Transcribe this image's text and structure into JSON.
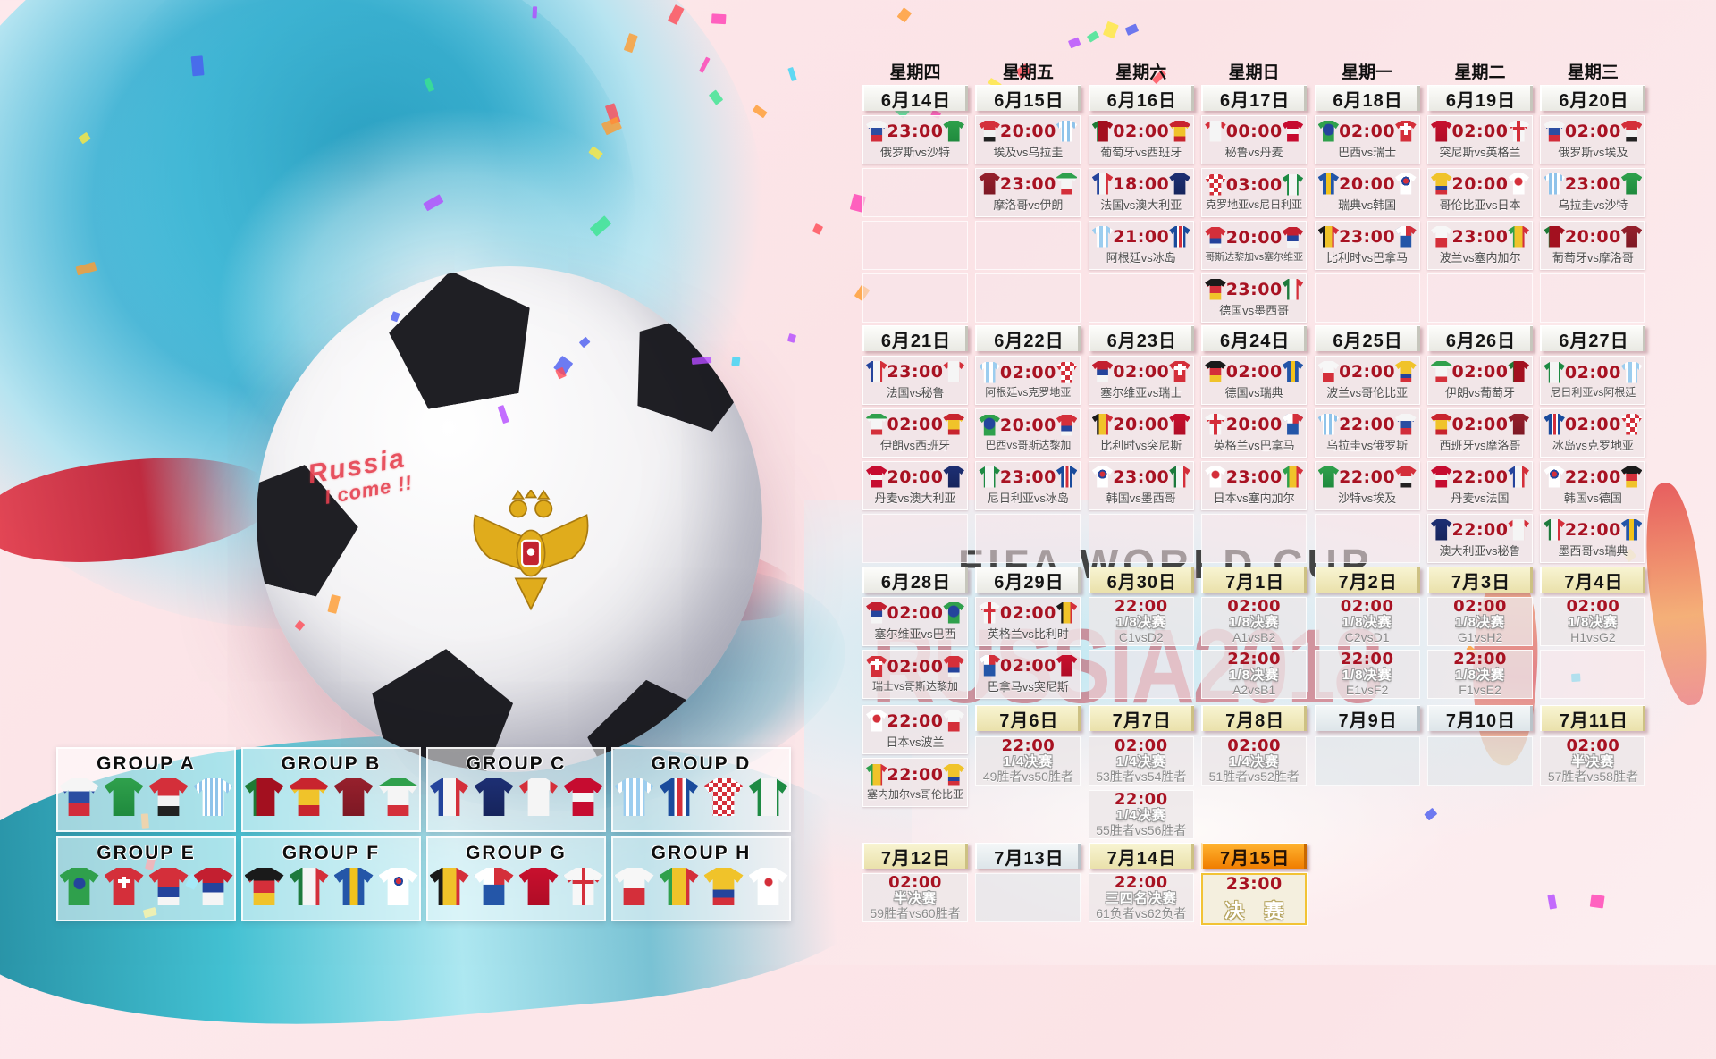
{
  "watermarks": {
    "title": "FIFA WORLD CUP",
    "subtitle": "RUSSIA2018"
  },
  "art": {
    "graffiti_line1": "Russia",
    "graffiti_line2": "I come !!"
  },
  "colors": {
    "time_red": "#a81222",
    "date_gold_bg": "#f3ecc0",
    "date_hot_bg": "#f07d00",
    "final_border": "#f2c335",
    "watermark_red": "#c21a2a",
    "splash_cyan": "#2fb0d4"
  },
  "calendar": {
    "vs_joiner": "vs",
    "weekdays": [
      "星期四",
      "星期五",
      "星期六",
      "星期日",
      "星期一",
      "星期二",
      "星期三"
    ],
    "rows": [
      [
        {
          "t": "w",
          "label": "星期四"
        },
        {
          "t": "w",
          "label": "星期五"
        },
        {
          "t": "w",
          "label": "星期六"
        },
        {
          "t": "w",
          "label": "星期日"
        },
        {
          "t": "w",
          "label": "星期一"
        },
        {
          "t": "w",
          "label": "星期二"
        },
        {
          "t": "w",
          "label": "星期三"
        }
      ],
      [
        {
          "t": "d",
          "label": "6月14日",
          "v": "plain"
        },
        {
          "t": "d",
          "label": "6月15日",
          "v": "plain"
        },
        {
          "t": "d",
          "label": "6月16日",
          "v": "plain"
        },
        {
          "t": "d",
          "label": "6月17日",
          "v": "plain"
        },
        {
          "t": "d",
          "label": "6月18日",
          "v": "plain"
        },
        {
          "t": "d",
          "label": "6月19日",
          "v": "plain"
        },
        {
          "t": "d",
          "label": "6月20日",
          "v": "plain"
        }
      ],
      [
        {
          "t": "m",
          "time": "23:00",
          "h": "俄罗斯",
          "a": "沙特"
        },
        {
          "t": "m",
          "time": "20:00",
          "h": "埃及",
          "a": "乌拉圭"
        },
        {
          "t": "m",
          "time": "02:00",
          "h": "葡萄牙",
          "a": "西班牙"
        },
        {
          "t": "m",
          "time": "00:00",
          "h": "秘鲁",
          "a": "丹麦"
        },
        {
          "t": "m",
          "time": "02:00",
          "h": "巴西",
          "a": "瑞士"
        },
        {
          "t": "m",
          "time": "02:00",
          "h": "突尼斯",
          "a": "英格兰"
        },
        {
          "t": "m",
          "time": "02:00",
          "h": "俄罗斯",
          "a": "埃及"
        }
      ],
      [
        {
          "t": "e"
        },
        {
          "t": "m",
          "time": "23:00",
          "h": "摩洛哥",
          "a": "伊朗"
        },
        {
          "t": "m",
          "time": "18:00",
          "h": "法国",
          "a": "澳大利亚"
        },
        {
          "t": "m",
          "time": "03:00",
          "h": "克罗地亚",
          "a": "尼日利亚"
        },
        {
          "t": "m",
          "time": "20:00",
          "h": "瑞典",
          "a": "韩国"
        },
        {
          "t": "m",
          "time": "20:00",
          "h": "哥伦比亚",
          "a": "日本"
        },
        {
          "t": "m",
          "time": "23:00",
          "h": "乌拉圭",
          "a": "沙特"
        }
      ],
      [
        {
          "t": "e"
        },
        {
          "t": "e"
        },
        {
          "t": "m",
          "time": "21:00",
          "h": "阿根廷",
          "a": "冰岛"
        },
        {
          "t": "m",
          "time": "20:00",
          "h": "哥斯达黎加",
          "a": "塞尔维亚"
        },
        {
          "t": "m",
          "time": "23:00",
          "h": "比利时",
          "a": "巴拿马"
        },
        {
          "t": "m",
          "time": "23:00",
          "h": "波兰",
          "a": "塞内加尔"
        },
        {
          "t": "m",
          "time": "20:00",
          "h": "葡萄牙",
          "a": "摩洛哥"
        }
      ],
      [
        {
          "t": "e"
        },
        {
          "t": "e"
        },
        {
          "t": "e"
        },
        {
          "t": "m",
          "time": "23:00",
          "h": "德国",
          "a": "墨西哥"
        },
        {
          "t": "e"
        },
        {
          "t": "e"
        },
        {
          "t": "e"
        }
      ],
      [
        {
          "t": "d",
          "label": "6月21日",
          "v": "plain"
        },
        {
          "t": "d",
          "label": "6月22日",
          "v": "plain"
        },
        {
          "t": "d",
          "label": "6月23日",
          "v": "plain"
        },
        {
          "t": "d",
          "label": "6月24日",
          "v": "plain"
        },
        {
          "t": "d",
          "label": "6月25日",
          "v": "plain"
        },
        {
          "t": "d",
          "label": "6月26日",
          "v": "plain"
        },
        {
          "t": "d",
          "label": "6月27日",
          "v": "plain"
        }
      ],
      [
        {
          "t": "m",
          "time": "23:00",
          "h": "法国",
          "a": "秘鲁"
        },
        {
          "t": "m",
          "time": "02:00",
          "h": "阿根廷",
          "a": "克罗地亚"
        },
        {
          "t": "m",
          "time": "02:00",
          "h": "塞尔维亚",
          "a": "瑞士"
        },
        {
          "t": "m",
          "time": "02:00",
          "h": "德国",
          "a": "瑞典"
        },
        {
          "t": "m",
          "time": "02:00",
          "h": "波兰",
          "a": "哥伦比亚"
        },
        {
          "t": "m",
          "time": "02:00",
          "h": "伊朗",
          "a": "葡萄牙"
        },
        {
          "t": "m",
          "time": "02:00",
          "h": "尼日利亚",
          "a": "阿根廷"
        }
      ],
      [
        {
          "t": "m",
          "time": "02:00",
          "h": "伊朗",
          "a": "西班牙"
        },
        {
          "t": "m",
          "time": "20:00",
          "h": "巴西",
          "a": "哥斯达黎加"
        },
        {
          "t": "m",
          "time": "20:00",
          "h": "比利时",
          "a": "突尼斯"
        },
        {
          "t": "m",
          "time": "20:00",
          "h": "英格兰",
          "a": "巴拿马"
        },
        {
          "t": "m",
          "time": "22:00",
          "h": "乌拉圭",
          "a": "俄罗斯"
        },
        {
          "t": "m",
          "time": "02:00",
          "h": "西班牙",
          "a": "摩洛哥"
        },
        {
          "t": "m",
          "time": "02:00",
          "h": "冰岛",
          "a": "克罗地亚"
        }
      ],
      [
        {
          "t": "m",
          "time": "20:00",
          "h": "丹麦",
          "a": "澳大利亚"
        },
        {
          "t": "m",
          "time": "23:00",
          "h": "尼日利亚",
          "a": "冰岛"
        },
        {
          "t": "m",
          "time": "23:00",
          "h": "韩国",
          "a": "墨西哥"
        },
        {
          "t": "m",
          "time": "23:00",
          "h": "日本",
          "a": "塞内加尔"
        },
        {
          "t": "m",
          "time": "22:00",
          "h": "沙特",
          "a": "埃及"
        },
        {
          "t": "m",
          "time": "22:00",
          "h": "丹麦",
          "a": "法国"
        },
        {
          "t": "m",
          "time": "22:00",
          "h": "韩国",
          "a": "德国"
        }
      ],
      [
        {
          "t": "e"
        },
        {
          "t": "e"
        },
        {
          "t": "e"
        },
        {
          "t": "e"
        },
        {
          "t": "e"
        },
        {
          "t": "m",
          "time": "22:00",
          "h": "澳大利亚",
          "a": "秘鲁"
        },
        {
          "t": "m",
          "time": "22:00",
          "h": "墨西哥",
          "a": "瑞典"
        }
      ],
      [
        {
          "t": "d",
          "label": "6月28日",
          "v": "plain"
        },
        {
          "t": "d",
          "label": "6月29日",
          "v": "plain"
        },
        {
          "t": "d",
          "label": "6月30日",
          "v": "gold"
        },
        {
          "t": "d",
          "label": "7月1日",
          "v": "gold"
        },
        {
          "t": "d",
          "label": "7月2日",
          "v": "gold"
        },
        {
          "t": "d",
          "label": "7月3日",
          "v": "gold"
        },
        {
          "t": "d",
          "label": "7月4日",
          "v": "gold"
        }
      ],
      [
        {
          "t": "m",
          "time": "02:00",
          "h": "塞尔维亚",
          "a": "巴西"
        },
        {
          "t": "m",
          "time": "02:00",
          "h": "英格兰",
          "a": "比利时"
        },
        {
          "t": "k",
          "time": "22:00",
          "stage": "1/8决赛",
          "mu": "C1vsD2"
        },
        {
          "t": "k",
          "time": "02:00",
          "stage": "1/8决赛",
          "mu": "A1vsB2"
        },
        {
          "t": "k",
          "time": "02:00",
          "stage": "1/8决赛",
          "mu": "C2vsD1"
        },
        {
          "t": "k",
          "time": "02:00",
          "stage": "1/8决赛",
          "mu": "G1vsH2"
        },
        {
          "t": "k",
          "time": "02:00",
          "stage": "1/8决赛",
          "mu": "H1vsG2"
        }
      ],
      [
        {
          "t": "m",
          "time": "02:00",
          "h": "瑞士",
          "a": "哥斯达黎加"
        },
        {
          "t": "m",
          "time": "02:00",
          "h": "巴拿马",
          "a": "突尼斯"
        },
        {
          "t": "e"
        },
        {
          "t": "k",
          "time": "22:00",
          "stage": "1/8决赛",
          "mu": "A2vsB1"
        },
        {
          "t": "k",
          "time": "22:00",
          "stage": "1/8决赛",
          "mu": "E1vsF2"
        },
        {
          "t": "k",
          "time": "22:00",
          "stage": "1/8决赛",
          "mu": "F1vsE2"
        },
        {
          "t": "e"
        }
      ],
      [
        {
          "t": "m",
          "time": "22:00",
          "h": "日本",
          "a": "波兰"
        },
        {
          "t": "d",
          "label": "7月6日",
          "v": "gold"
        },
        {
          "t": "d",
          "label": "7月7日",
          "v": "gold"
        },
        {
          "t": "d",
          "label": "7月8日",
          "v": "gold"
        },
        {
          "t": "d",
          "label": "7月9日",
          "v": "cool"
        },
        {
          "t": "d",
          "label": "7月10日",
          "v": "cool"
        },
        {
          "t": "d",
          "label": "7月11日",
          "v": "gold"
        }
      ],
      [
        {
          "t": "m",
          "time": "22:00",
          "h": "塞内加尔",
          "a": "哥伦比亚"
        },
        {
          "t": "k",
          "time": "22:00",
          "stage": "1/4决赛",
          "mu": "49胜者vs50胜者"
        },
        {
          "t": "k",
          "time": "02:00",
          "stage": "1/4决赛",
          "mu": "53胜者vs54胜者"
        },
        {
          "t": "k",
          "time": "02:00",
          "stage": "1/4决赛",
          "mu": "51胜者vs52胜者"
        },
        {
          "t": "e",
          "v": "cool"
        },
        {
          "t": "e",
          "v": "cool"
        },
        {
          "t": "k",
          "time": "02:00",
          "stage": "半决赛",
          "mu": "57胜者vs58胜者"
        }
      ],
      [
        {
          "t": "n"
        },
        {
          "t": "n"
        },
        {
          "t": "k",
          "time": "22:00",
          "stage": "1/4决赛",
          "mu": "55胜者vs56胜者"
        },
        {
          "t": "n"
        },
        {
          "t": "n"
        },
        {
          "t": "n"
        },
        {
          "t": "n"
        }
      ],
      [
        {
          "t": "d",
          "label": "7月12日",
          "v": "gold"
        },
        {
          "t": "d",
          "label": "7月13日",
          "v": "cool"
        },
        {
          "t": "d",
          "label": "7月14日",
          "v": "gold"
        },
        {
          "t": "d",
          "label": "7月15日",
          "v": "hot"
        },
        {
          "t": "n"
        },
        {
          "t": "n"
        },
        {
          "t": "n"
        }
      ],
      [
        {
          "t": "k",
          "time": "02:00",
          "stage": "半决赛",
          "mu": "59胜者vs60胜者"
        },
        {
          "t": "e",
          "v": "cool"
        },
        {
          "t": "k",
          "time": "22:00",
          "stage": "三四名决赛",
          "mu": "61负者vs62负者"
        },
        {
          "t": "f",
          "time": "23:00",
          "label": "决 赛"
        },
        {
          "t": "n"
        },
        {
          "t": "n"
        },
        {
          "t": "n"
        }
      ]
    ]
  },
  "groups": [
    {
      "name": "GROUP A",
      "teams": [
        "俄罗斯",
        "沙特",
        "埃及",
        "乌拉圭"
      ]
    },
    {
      "name": "GROUP B",
      "teams": [
        "葡萄牙",
        "西班牙",
        "摩洛哥",
        "伊朗"
      ]
    },
    {
      "name": "GROUP C",
      "teams": [
        "法国",
        "澳大利亚",
        "秘鲁",
        "丹麦"
      ]
    },
    {
      "name": "GROUP D",
      "teams": [
        "阿根廷",
        "冰岛",
        "克罗地亚",
        "尼日利亚"
      ]
    },
    {
      "name": "GROUP E",
      "teams": [
        "巴西",
        "瑞士",
        "哥斯达黎加",
        "塞尔维亚"
      ]
    },
    {
      "name": "GROUP F",
      "teams": [
        "德国",
        "墨西哥",
        "瑞典",
        "韩国"
      ]
    },
    {
      "name": "GROUP G",
      "teams": [
        "比利时",
        "巴拿马",
        "突尼斯",
        "英格兰"
      ]
    },
    {
      "name": "GROUP H",
      "teams": [
        "波兰",
        "塞内加尔",
        "哥伦比亚",
        "日本"
      ]
    }
  ],
  "teams": {
    "俄罗斯": "linear-gradient(180deg,#f5f5f5 0 34%,#2b4ea2 34% 67%,#d22c3a 67%)",
    "沙特": "linear-gradient(180deg,#2fa04c,#1f8a3d)",
    "埃及": "linear-gradient(180deg,#d42f3a 0 46%,#f2f2f2 46% 74%,#222222 74%)",
    "乌拉圭": "repeating-linear-gradient(90deg,#8fc3ea 0 3px,#ffffff 3px 6px)",
    "葡萄牙": "linear-gradient(90deg,#1e7a34 0 28%,#a3101f 28%)",
    "西班牙": "linear-gradient(180deg,#c8242e 0 30%,#f0c32a 30% 72%,#c8242e 72%)",
    "摩洛哥": "linear-gradient(180deg,#96202c,#7d1824)",
    "伊朗": "linear-gradient(180deg,#2fa04c 0 22%,#f5f5f5 22% 72%,#d42f3a 72%)",
    "法国": "linear-gradient(90deg,#24449c 0 34%,#f5f5f5 34% 66%,#d42f3a 66%)",
    "澳大利亚": "linear-gradient(180deg,#1d2f73,#16245c)",
    "秘鲁": "linear-gradient(90deg,#d42f3a 0 22%,#f5f5f5 22% 78%,#d42f3a 78%)",
    "丹麦": "linear-gradient(180deg,#c60c30 0 38%,#f5f5f5 38% 62%,#c60c30 62%)",
    "阿根廷": "repeating-linear-gradient(90deg,#9ccdef 0 4px,#ffffff 4px 8px)",
    "冰岛": "linear-gradient(90deg,#1a4b9c 0 38%,#ffffff 38% 46%,#d42f3a 46% 58%,#ffffff 58% 66%,#1a4b9c 66%)",
    "克罗地亚": "repeating-conic-gradient(#d42f3a 0 25%,#ffffff 0 50%) 0 0/10px 10px",
    "尼日利亚": "linear-gradient(90deg,#1d8a43 0 30%,#f5f5f5 30% 70%,#1d8a43 70%)",
    "巴西": "radial-gradient(circle at 50% 42%,#24449c 0 6px,#2fa04c 7px)",
    "瑞士": "linear-gradient(#ffffff,#ffffff) 50% 34%/4px 13px no-repeat,linear-gradient(#ffffff,#ffffff) 50% 34%/13px 4px no-repeat,#d42f3a",
    "哥斯达黎加": "linear-gradient(180deg,#d42f3a 0 52%,#24449c 52% 78%,#f5f5f5 78%)",
    "塞尔维亚": "linear-gradient(180deg,#c31f30 0 40%,#24449c 40% 66%,#f5f5f5 66%)",
    "德国": "linear-gradient(180deg,#1a1a1a 0 34%,#d42f3a 34% 67%,#f0c32a 67%)",
    "墨西哥": "linear-gradient(90deg,#1d7a3c 0 33%,#f5f5f5 33% 67%,#d42f3a 67%)",
    "瑞典": "linear-gradient(90deg,#2456a8 0 40%,#f2c21b 40% 60%,#2456a8 60%)",
    "韩国": "radial-gradient(circle at 50% 36%,#d42f3a 0 3px,#24449c 3px 5px,#ffffff 5px)",
    "比利时": "linear-gradient(90deg,#1a1a1a 0 33%,#f0c32a 33% 67%,#d42f3a 67%)",
    "巴拿马": "linear-gradient(90deg,#ffffff 0 50%,#d42f3a 50%) 0 0/100% 45% no-repeat,#2456a8",
    "突尼斯": "linear-gradient(180deg,#c8102e,#b00c26)",
    "英格兰": "linear-gradient(#d42f3a,#d42f3a) 50% 0/4px 100% no-repeat,linear-gradient(#d42f3a,#d42f3a) 0 36%/100% 4px no-repeat,#f7f7f7",
    "波兰": "linear-gradient(180deg,#f7f7f7 0 55%,#d42f3a 55%)",
    "塞内加尔": "linear-gradient(90deg,#2fa04c 0 32%,#f0c32a 32% 68%,#d42f3a 68%)",
    "哥伦比亚": "linear-gradient(180deg,#f0c32a 0 58%,#24449c 58% 80%,#d42f3a 80%)",
    "日本": "radial-gradient(circle at 50% 38%,#d42f3a 0 4px,#ffffff 5px)"
  }
}
